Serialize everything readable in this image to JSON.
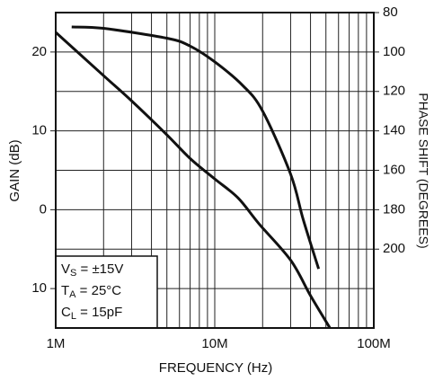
{
  "chart_data": {
    "type": "line",
    "xlabel": "FREQUENCY (Hz)",
    "ylabel": "GAIN (dB)",
    "y2label": "PHASE SHIFT (DEGREES)",
    "xscale": "log",
    "xlim": [
      1000000,
      100000000
    ],
    "xticks": [
      {
        "value": 1000000,
        "label": "1M"
      },
      {
        "value": 10000000,
        "label": "10M"
      },
      {
        "value": 100000000,
        "label": "100M"
      }
    ],
    "xgrid": [
      2000000,
      3000000,
      4000000,
      5000000,
      6000000,
      7000000,
      8000000,
      9000000,
      20000000,
      30000000,
      40000000,
      50000000,
      60000000,
      70000000,
      80000000,
      90000000
    ],
    "ylim": [
      -15,
      25
    ],
    "yticks": [
      20,
      10,
      0,
      {
        "value": -10,
        "label": "10"
      }
    ],
    "ygrid": [
      -10,
      -5,
      0,
      5,
      10,
      15,
      20
    ],
    "y2lim": [
      240,
      80
    ],
    "y2ticks": [
      80,
      100,
      120,
      140,
      160,
      180,
      200
    ],
    "series": [
      {
        "color": "#111111",
        "x": [
          1000000,
          2000000,
          3000000,
          5000000,
          7000000,
          10000000,
          14000000,
          19000000,
          30000000,
          40000000,
          53000000
        ],
        "values": [
          22.5,
          17,
          13.8,
          9.5,
          6.5,
          3.9,
          1.5,
          -1.8,
          -6.4,
          -10.9,
          -15
        ]
      },
      {
        "color": "#111111",
        "axis": "y2",
        "x": [
          1260000,
          2000000,
          5000000,
          7000000,
          10000000,
          15000000,
          20000000,
          30000000,
          36000000,
          45000000
        ],
        "values": [
          87.3,
          88,
          93,
          97,
          105,
          117,
          130,
          162,
          185,
          210
        ]
      }
    ],
    "annotations": [
      {
        "main": "V",
        "sub": "S",
        "rest": " = ±15V"
      },
      {
        "main": "T",
        "sub": "A",
        "rest": " = 25°C"
      },
      {
        "main": "C",
        "sub": "L",
        "rest": " = 15pF"
      }
    ]
  }
}
